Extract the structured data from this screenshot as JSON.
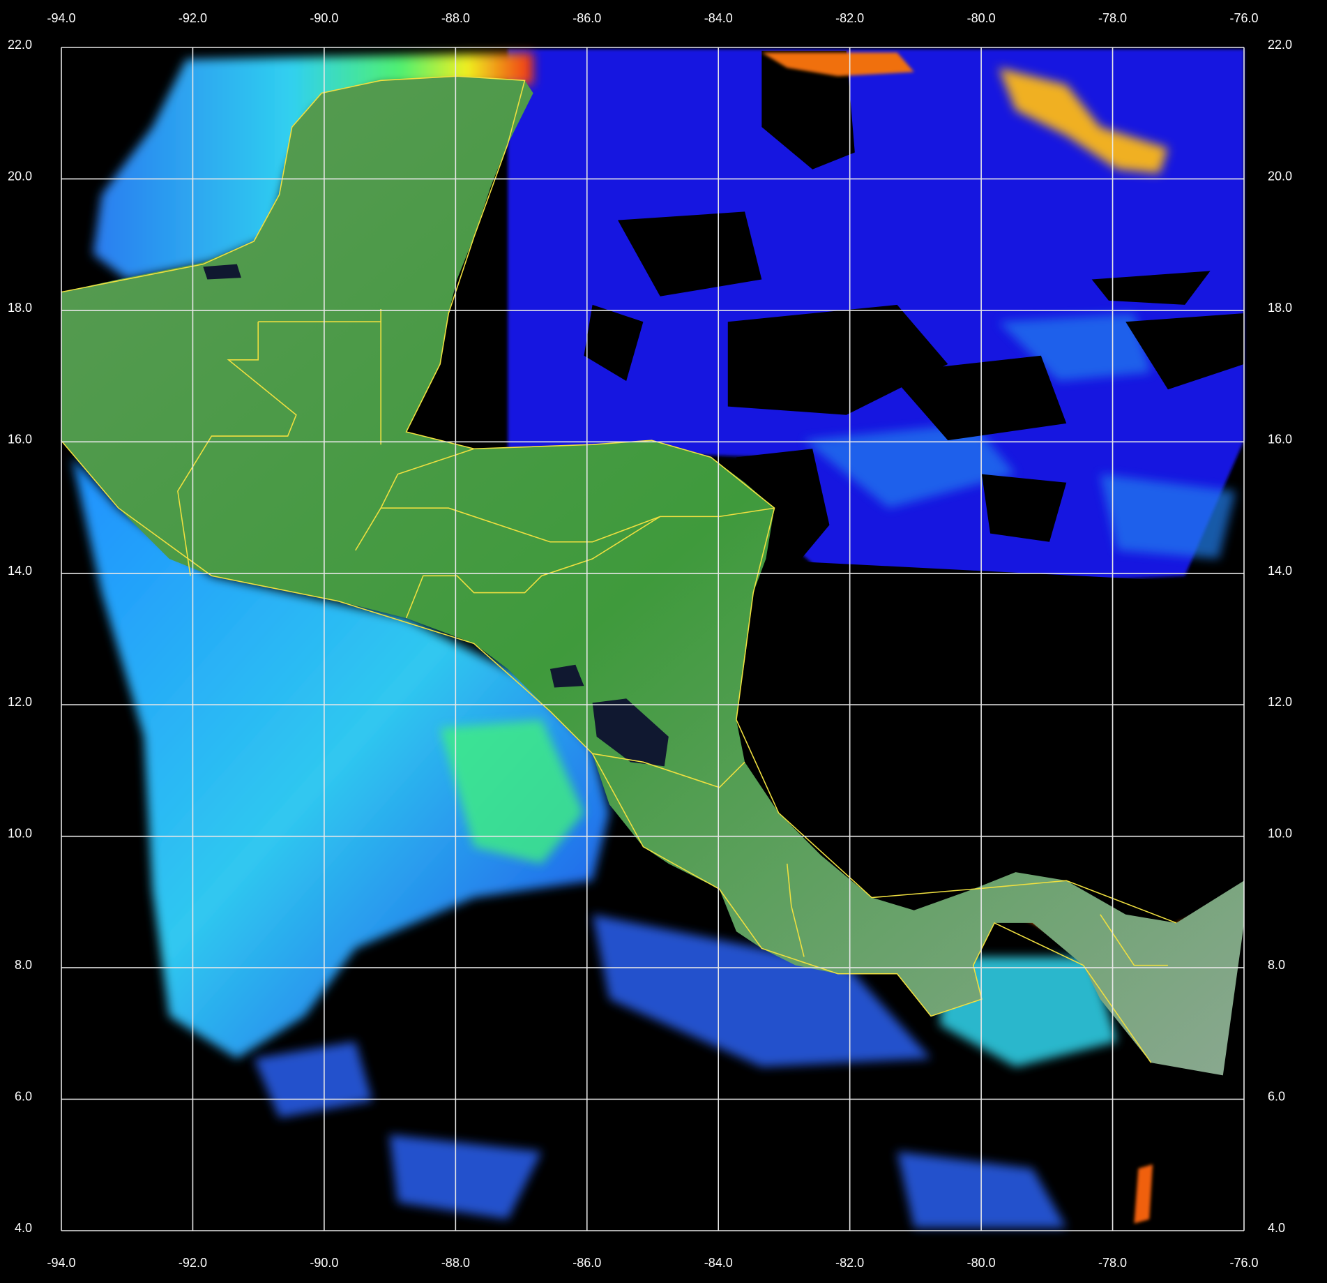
{
  "map": {
    "longitude_ticks": [
      "-94.0",
      "-92.0",
      "-90.0",
      "-88.0",
      "-86.0",
      "-84.0",
      "-82.0",
      "-80.0",
      "-78.0",
      "-76.0"
    ],
    "latitude_ticks": [
      "22.0",
      "20.0",
      "18.0",
      "16.0",
      "14.0",
      "12.0",
      "10.0",
      "8.0",
      "6.0",
      "4.0"
    ],
    "lon_range": [
      -94,
      -76
    ],
    "lat_range": [
      4,
      22
    ],
    "grid": true,
    "colors": {
      "background": "#000000",
      "grid": "#e8e8e8",
      "borders": "#f0e040",
      "land": "#4f9a4a",
      "low_chlorophyll": "#1a1ae8",
      "mid_chlorophyll": "#20c8f0",
      "high_chlorophyll": "#f03010"
    }
  }
}
